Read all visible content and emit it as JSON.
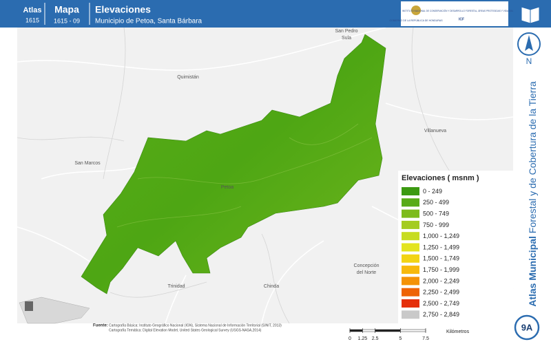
{
  "header": {
    "atlas_label": "Atlas",
    "atlas_number": "1615",
    "map_label": "Mapa",
    "map_number": "1615 - 09",
    "title": "Elevaciones",
    "subtitle": "Municipio de Petoa, Santa Bárbara",
    "gov_text": "GOBIERNO DE LA REPÚBLICA DE HONDURAS",
    "icf_text": "INSTITUTO NACIONAL DE CONSERVACIÓN Y DESARROLLO FORESTAL, ÁREAS PROTEGIDAS Y VIDA SILVESTRE",
    "icf_acronym": "ICF"
  },
  "places": [
    "San Pedro Sula",
    "Quimistán",
    "Villanueva",
    "San Marcos",
    "Petoa",
    "Concepción del Norte",
    "Trinidad",
    "Chinda"
  ],
  "legend": {
    "title": "Elevaciones ( msnm )",
    "items": [
      {
        "label": "0 - 249",
        "color": "#3c9a12"
      },
      {
        "label": "250 - 499",
        "color": "#58ab17"
      },
      {
        "label": "500 - 749",
        "color": "#7dbb1b"
      },
      {
        "label": "750 - 999",
        "color": "#a4cc20"
      },
      {
        "label": "1,000 - 1,249",
        "color": "#c7dc22"
      },
      {
        "label": "1,250 - 1,499",
        "color": "#e3e41e"
      },
      {
        "label": "1,500 - 1,749",
        "color": "#f2d414"
      },
      {
        "label": "1,750 - 1,999",
        "color": "#f7b90d"
      },
      {
        "label": "2,000 - 2,249",
        "color": "#f49207"
      },
      {
        "label": "2,250 - 2,499",
        "color": "#ee6406"
      },
      {
        "label": "2,500 - 2,749",
        "color": "#e5300b"
      },
      {
        "label": "2,750 - 2,849",
        "color": "#c9c9c9"
      }
    ]
  },
  "sidebar": {
    "north": "N",
    "title_bold": "Atlas Municipal",
    "title_rest": " Forestal y de Cobertura de la Tierra",
    "sheet": "9A"
  },
  "source": {
    "label": "Fuente:",
    "lines": [
      "Cartografía Básica: Instituto Geográfico Nacional (IGN), Sistema Nacional de Información Territorial (SINIT, 2013)",
      "Cartografía Temática: Digital Elevation Model, United States Geological Survey (USGS-NASA,2014)"
    ]
  },
  "scale": {
    "ticks": [
      0,
      1.25,
      2.5,
      5,
      7.5
    ],
    "unit": "Kilómetros"
  }
}
